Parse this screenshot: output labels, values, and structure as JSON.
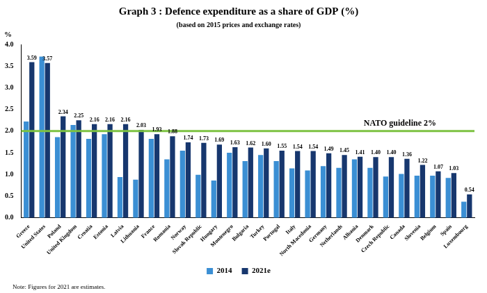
{
  "chart_data": {
    "type": "bar",
    "title": "Graph 3 : Defence expenditure as a share of GDP (%)",
    "subtitle": "(based on 2015 prices and exchange rates)",
    "y_label": "%",
    "note": "Note: Figures for 2021 are estimates.",
    "categories": [
      "Greece",
      "United States",
      "Poland",
      "United Kingdom",
      "Croatia",
      "Estonia",
      "Latvia",
      "Lithuania",
      "France",
      "Romania",
      "Norway",
      "Slovak Republic",
      "Hungary",
      "Montenegro",
      "Bulgaria",
      "Turkey",
      "Portugal",
      "Italy",
      "North Macedonia",
      "Germany",
      "Netherlands",
      "Albania",
      "Denmark",
      "Czech Republic",
      "Canada",
      "Slovenia",
      "Belgium",
      "Spain",
      "Luxembourg"
    ],
    "series": [
      {
        "name": "2014",
        "color": "#3b8fd4",
        "values": [
          2.22,
          3.72,
          1.86,
          2.14,
          1.82,
          1.93,
          0.94,
          0.88,
          1.82,
          1.35,
          1.55,
          0.99,
          0.86,
          1.5,
          1.31,
          1.45,
          1.31,
          1.14,
          1.09,
          1.19,
          1.15,
          1.35,
          1.15,
          0.95,
          1.01,
          0.97,
          0.97,
          0.92,
          0.37
        ]
      },
      {
        "name": "2021e",
        "color": "#17376e",
        "data_labels": true,
        "values": [
          3.59,
          3.57,
          2.34,
          2.25,
          2.16,
          2.16,
          2.16,
          2.03,
          1.93,
          1.88,
          1.74,
          1.73,
          1.69,
          1.63,
          1.62,
          1.6,
          1.55,
          1.54,
          1.54,
          1.49,
          1.45,
          1.41,
          1.4,
          1.4,
          1.36,
          1.22,
          1.07,
          1.03,
          0.54
        ],
        "value_labels": [
          "3.59",
          "3.57",
          "2.34",
          "2.25",
          "2.16",
          "2.16",
          "2.16",
          "2.03",
          "1.93",
          "1.88",
          "1.74",
          "1.73",
          "1.69",
          "1.63",
          "1.62",
          "1.60",
          "1.55",
          "1.54",
          "1.54",
          "1.49",
          "1.45",
          "1.41",
          "1.40",
          "1.40",
          "1.36",
          "1.22",
          "1.07",
          "1.03",
          "0.54"
        ]
      }
    ],
    "reference_line": {
      "value": 2,
      "label": "NATO guideline 2%",
      "color": "#7dc242"
    },
    "ylim": [
      0,
      4
    ],
    "yticks": [
      {
        "value": 0,
        "label": "0.0"
      },
      0.5,
      {
        "value": 1,
        "label": "1.0"
      },
      1.5,
      {
        "value": 2,
        "label": "2.0"
      },
      2.5,
      {
        "value": 3,
        "label": "3.0"
      },
      3.5,
      {
        "value": 4,
        "label": "4.0"
      }
    ],
    "grid": false,
    "legend": "bottom"
  }
}
